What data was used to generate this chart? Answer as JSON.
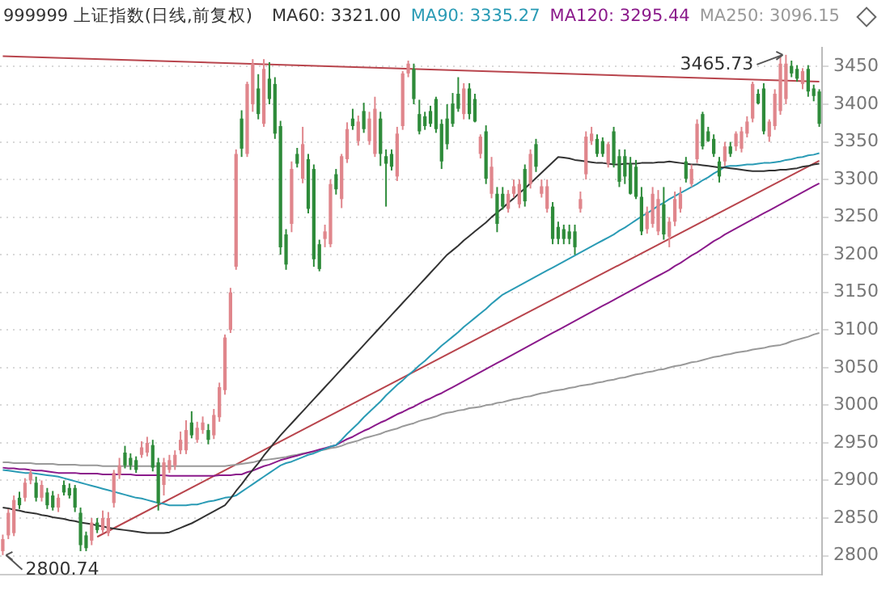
{
  "chart_data": {
    "type": "candlestick",
    "title": "999999 上证指数(日线,前复权)",
    "legend": "top",
    "grid": "y",
    "tick_labels": "y",
    "ylim": [
      2775,
      3475
    ],
    "yticks": [
      2800,
      2850,
      2900,
      2950,
      3000,
      3050,
      3100,
      3150,
      3200,
      3250,
      3300,
      3350,
      3400,
      3450
    ],
    "categories": [
      null,
      null,
      null,
      null,
      null,
      null,
      null,
      null,
      null,
      null,
      null,
      null,
      null,
      null,
      null,
      null,
      null,
      null,
      null,
      null,
      null,
      null,
      null,
      null,
      null,
      null,
      null,
      null,
      null,
      null,
      null,
      null,
      null,
      null,
      null,
      null,
      null,
      null,
      null,
      null,
      null,
      null,
      null,
      null,
      null,
      null,
      null,
      null,
      null,
      null,
      null,
      null,
      null,
      null,
      null,
      null,
      null,
      null,
      null,
      null,
      null,
      null,
      null,
      null,
      null,
      null,
      null,
      null,
      null,
      null,
      null,
      null,
      null,
      null,
      null,
      null,
      null,
      null,
      null,
      null,
      null,
      null,
      null,
      null,
      null,
      null,
      null,
      null,
      null,
      null,
      null,
      null,
      null,
      null,
      null,
      null,
      null,
      null,
      null,
      null,
      null,
      null,
      null,
      null,
      null,
      null,
      null,
      null,
      null,
      null,
      null,
      null,
      null,
      null,
      null,
      null,
      null,
      null,
      null,
      null,
      null,
      null,
      null,
      null,
      null,
      null,
      null,
      null,
      null,
      null,
      null,
      null,
      null,
      null,
      null,
      null,
      null,
      null,
      null,
      null,
      null,
      null,
      null,
      null,
      null,
      null,
      null,
      null
    ],
    "ohlc": [
      [
        2806,
        2828,
        2800.74,
        2822
      ],
      [
        2827,
        2862,
        2822,
        2857
      ],
      [
        2830,
        2880,
        2826,
        2874
      ],
      [
        2877,
        2885,
        2862,
        2867
      ],
      [
        2877,
        2903,
        2872,
        2897
      ],
      [
        2900,
        2915,
        2895,
        2910
      ],
      [
        2897,
        2905,
        2872,
        2877
      ],
      [
        2877,
        2900,
        2872,
        2894
      ],
      [
        2884,
        2890,
        2862,
        2867
      ],
      [
        2880,
        2886,
        2860,
        2864
      ],
      [
        2864,
        2882,
        2858,
        2877
      ],
      [
        2894,
        2900,
        2880,
        2884
      ],
      [
        2890,
        2896,
        2876,
        2880
      ],
      [
        2890,
        2894,
        2858,
        2864
      ],
      [
        2857,
        2864,
        2806,
        2814
      ],
      [
        2827,
        2832,
        2806,
        2810
      ],
      [
        2820,
        2850,
        2814,
        2844
      ],
      [
        2844,
        2850,
        2830,
        2834
      ],
      [
        2834,
        2860,
        2830,
        2850
      ],
      [
        2830,
        2858,
        2826,
        2850
      ],
      [
        2870,
        2914,
        2864,
        2910
      ],
      [
        2907,
        2930,
        2902,
        2920
      ],
      [
        2937,
        2946,
        2916,
        2920
      ],
      [
        2930,
        2936,
        2914,
        2920
      ],
      [
        2927,
        2932,
        2910,
        2914
      ],
      [
        2934,
        2952,
        2930,
        2944
      ],
      [
        2937,
        2958,
        2932,
        2950
      ],
      [
        2947,
        2954,
        2912,
        2917
      ],
      [
        2924,
        2930,
        2860,
        2870
      ],
      [
        2894,
        2930,
        2880,
        2924
      ],
      [
        2914,
        2934,
        2910,
        2927
      ],
      [
        2920,
        2940,
        2914,
        2934
      ],
      [
        2940,
        2965,
        2935,
        2954
      ],
      [
        2940,
        2980,
        2935,
        2967
      ],
      [
        2977,
        2992,
        2956,
        2960
      ],
      [
        2954,
        2978,
        2950,
        2970
      ],
      [
        2967,
        2985,
        2962,
        2977
      ],
      [
        2967,
        2975,
        2948,
        2954
      ],
      [
        2960,
        2995,
        2955,
        2987
      ],
      [
        2984,
        3030,
        2978,
        3024
      ],
      [
        3020,
        3094,
        3014,
        3090
      ],
      [
        3100,
        3156,
        3096,
        3150
      ],
      [
        3184,
        3340,
        3180,
        3334
      ],
      [
        3381,
        3392,
        3330,
        3341
      ],
      [
        3334,
        3430,
        3330,
        3427
      ],
      [
        3400,
        3460,
        3390,
        3454
      ],
      [
        3421,
        3440,
        3380,
        3387
      ],
      [
        3374,
        3460,
        3370,
        3447
      ],
      [
        3434,
        3456,
        3400,
        3407
      ],
      [
        3427,
        3436,
        3354,
        3361
      ],
      [
        3371,
        3378,
        3200,
        3210
      ],
      [
        3227,
        3234,
        3180,
        3187
      ],
      [
        3241,
        3324,
        3230,
        3314
      ],
      [
        3334,
        3342,
        3316,
        3321
      ],
      [
        3301,
        3370,
        3295,
        3347
      ],
      [
        3327,
        3334,
        3255,
        3261
      ],
      [
        3314,
        3320,
        3184,
        3194
      ],
      [
        3214,
        3220,
        3178,
        3181
      ],
      [
        3221,
        3240,
        3210,
        3231
      ],
      [
        3214,
        3300,
        3210,
        3294
      ],
      [
        3307,
        3314,
        3280,
        3287
      ],
      [
        3274,
        3334,
        3262,
        3331
      ],
      [
        3327,
        3376,
        3322,
        3367
      ],
      [
        3381,
        3394,
        3366,
        3371
      ],
      [
        3351,
        3385,
        3345,
        3377
      ],
      [
        3391,
        3402,
        3362,
        3367
      ],
      [
        3351,
        3390,
        3346,
        3381
      ],
      [
        3334,
        3410,
        3330,
        3394
      ],
      [
        3381,
        3390,
        3318,
        3334
      ],
      [
        3331,
        3340,
        3264,
        3321
      ],
      [
        3334,
        3340,
        3312,
        3317
      ],
      [
        3304,
        3370,
        3298,
        3361
      ],
      [
        3371,
        3444,
        3366,
        3441
      ],
      [
        3441,
        3458,
        3436,
        3454
      ],
      [
        3447,
        3454,
        3400,
        3407
      ],
      [
        3387,
        3406,
        3360,
        3364
      ],
      [
        3384,
        3390,
        3366,
        3371
      ],
      [
        3391,
        3398,
        3370,
        3374
      ],
      [
        3407,
        3410,
        3362,
        3367
      ],
      [
        3374,
        3380,
        3314,
        3324
      ],
      [
        3381,
        3400,
        3340,
        3347
      ],
      [
        3401,
        3415,
        3370,
        3374
      ],
      [
        3414,
        3436,
        3390,
        3394
      ],
      [
        3387,
        3428,
        3380,
        3421
      ],
      [
        3421,
        3428,
        3380,
        3387
      ],
      [
        3407,
        3414,
        3376,
        3377
      ],
      [
        3334,
        3360,
        3328,
        3357
      ],
      [
        3364,
        3372,
        3294,
        3301
      ],
      [
        3281,
        3330,
        3275,
        3317
      ],
      [
        3281,
        3290,
        3230,
        3241
      ],
      [
        3281,
        3290,
        3260,
        3264
      ],
      [
        3261,
        3286,
        3256,
        3281
      ],
      [
        3281,
        3300,
        3276,
        3291
      ],
      [
        3267,
        3300,
        3262,
        3294
      ],
      [
        3314,
        3320,
        3264,
        3271
      ],
      [
        3294,
        3340,
        3288,
        3334
      ],
      [
        3347,
        3354,
        3310,
        3317
      ],
      [
        3281,
        3300,
        3276,
        3291
      ],
      [
        3261,
        3300,
        3256,
        3291
      ],
      [
        3264,
        3270,
        3214,
        3221
      ],
      [
        3237,
        3244,
        3214,
        3221
      ],
      [
        3234,
        3240,
        3214,
        3221
      ],
      [
        3231,
        3240,
        3214,
        3221
      ],
      [
        3231,
        3240,
        3200,
        3210
      ],
      [
        3261,
        3284,
        3256,
        3274
      ],
      [
        3307,
        3364,
        3300,
        3357
      ],
      [
        3351,
        3370,
        3346,
        3361
      ],
      [
        3354,
        3360,
        3330,
        3334
      ],
      [
        3351,
        3356,
        3330,
        3334
      ],
      [
        3321,
        3350,
        3316,
        3347
      ],
      [
        3364,
        3370,
        3316,
        3321
      ],
      [
        3331,
        3340,
        3290,
        3297
      ],
      [
        3331,
        3340,
        3294,
        3304
      ],
      [
        3321,
        3330,
        3280,
        3281
      ],
      [
        3317,
        3326,
        3274,
        3277
      ],
      [
        3277,
        3290,
        3226,
        3231
      ],
      [
        3234,
        3264,
        3228,
        3257
      ],
      [
        3241,
        3290,
        3236,
        3281
      ],
      [
        3231,
        3286,
        3226,
        3274
      ],
      [
        3267,
        3290,
        3220,
        3227
      ],
      [
        3224,
        3250,
        3210,
        3244
      ],
      [
        3244,
        3284,
        3238,
        3274
      ],
      [
        3261,
        3290,
        3256,
        3281
      ],
      [
        3324,
        3330,
        3296,
        3301
      ],
      [
        3294,
        3320,
        3290,
        3314
      ],
      [
        3327,
        3380,
        3322,
        3374
      ],
      [
        3387,
        3390,
        3340,
        3344
      ],
      [
        3364,
        3370,
        3350,
        3351
      ],
      [
        3354,
        3360,
        3330,
        3334
      ],
      [
        3324,
        3330,
        3296,
        3304
      ],
      [
        3324,
        3350,
        3318,
        3344
      ],
      [
        3344,
        3350,
        3330,
        3334
      ],
      [
        3344,
        3364,
        3338,
        3361
      ],
      [
        3341,
        3370,
        3336,
        3364
      ],
      [
        3361,
        3384,
        3356,
        3377
      ],
      [
        3381,
        3430,
        3376,
        3427
      ],
      [
        3414,
        3420,
        3400,
        3401
      ],
      [
        3421,
        3428,
        3360,
        3364
      ],
      [
        3357,
        3380,
        3350,
        3377
      ],
      [
        3371,
        3420,
        3366,
        3414
      ],
      [
        3391,
        3464,
        3386,
        3454
      ],
      [
        3407,
        3465.73,
        3400,
        3454
      ],
      [
        3451,
        3458,
        3436,
        3441
      ],
      [
        3447,
        3452,
        3430,
        3434
      ],
      [
        3427,
        3448,
        3420,
        3444
      ],
      [
        3447,
        3452,
        3410,
        3417
      ],
      [
        3421,
        3426,
        3404,
        3411
      ],
      [
        3417,
        3420,
        3370,
        3374
      ]
    ],
    "colors": [
      "#e0868c",
      "#e0868c",
      "#e0868c",
      "#2e8b3a",
      "#e0868c",
      "#e0868c",
      "#2e8b3a",
      "#e0868c",
      "#2e8b3a",
      "#2e8b3a",
      "#e0868c",
      "#2e8b3a",
      "#2e8b3a",
      "#2e8b3a",
      "#2e8b3a",
      "#2e8b3a",
      "#e0868c",
      "#2e8b3a",
      "#e0868c",
      "#e0868c",
      "#e0868c",
      "#e0868c",
      "#2e8b3a",
      "#2e8b3a",
      "#2e8b3a",
      "#e0868c",
      "#e0868c",
      "#2e8b3a",
      "#2e8b3a",
      "#e0868c",
      "#e0868c",
      "#e0868c",
      "#e0868c",
      "#e0868c",
      "#2e8b3a",
      "#e0868c",
      "#e0868c",
      "#2e8b3a",
      "#e0868c",
      "#e0868c",
      "#e0868c",
      "#e0868c",
      "#e0868c",
      "#2e8b3a",
      "#e0868c",
      "#e0868c",
      "#2e8b3a",
      "#e0868c",
      "#2e8b3a",
      "#2e8b3a",
      "#2e8b3a",
      "#2e8b3a",
      "#e0868c",
      "#2e8b3a",
      "#e0868c",
      "#2e8b3a",
      "#2e8b3a",
      "#2e8b3a",
      "#e0868c",
      "#e0868c",
      "#2e8b3a",
      "#e0868c",
      "#e0868c",
      "#2e8b3a",
      "#e0868c",
      "#2e8b3a",
      "#e0868c",
      "#e0868c",
      "#2e8b3a",
      "#2e8b3a",
      "#2e8b3a",
      "#e0868c",
      "#e0868c",
      "#e0868c",
      "#2e8b3a",
      "#2e8b3a",
      "#2e8b3a",
      "#2e8b3a",
      "#2e8b3a",
      "#2e8b3a",
      "#2e8b3a",
      "#2e8b3a",
      "#2e8b3a",
      "#e0868c",
      "#2e8b3a",
      "#2e8b3a",
      "#e0868c",
      "#2e8b3a",
      "#e0868c",
      "#2e8b3a",
      "#2e8b3a",
      "#e0868c",
      "#e0868c",
      "#e0868c",
      "#2e8b3a",
      "#e0868c",
      "#2e8b3a",
      "#e0868c",
      "#e0868c",
      "#2e8b3a",
      "#2e8b3a",
      "#2e8b3a",
      "#2e8b3a",
      "#2e8b3a",
      "#e0868c",
      "#e0868c",
      "#e0868c",
      "#2e8b3a",
      "#2e8b3a",
      "#e0868c",
      "#2e8b3a",
      "#2e8b3a",
      "#2e8b3a",
      "#2e8b3a",
      "#2e8b3a",
      "#2e8b3a",
      "#e0868c",
      "#e0868c",
      "#e0868c",
      "#2e8b3a",
      "#e0868c",
      "#e0868c",
      "#e0868c",
      "#2e8b3a",
      "#e0868c",
      "#e0868c",
      "#2e8b3a",
      "#2e8b3a",
      "#2e8b3a",
      "#2e8b3a",
      "#e0868c",
      "#2e8b3a",
      "#e0868c",
      "#e0868c",
      "#e0868c",
      "#e0868c",
      "#2e8b3a",
      "#2e8b3a",
      "#e0868c",
      "#e0868c",
      "#e0868c",
      "#e0868c",
      "#2e8b3a",
      "#2e8b3a",
      "#e0868c",
      "#2e8b3a",
      "#2e8b3a",
      "#2e8b3a"
    ],
    "series": [
      {
        "name": "MA60: 3321.00",
        "type": "line",
        "color": "#333333",
        "values": [
          2864,
          2863,
          2861,
          2860,
          2858,
          2857,
          2856,
          2854,
          2853,
          2851,
          2850,
          2849,
          2847,
          2846,
          2844,
          2843,
          2842,
          2840,
          2839,
          2837,
          2836,
          2835,
          2834,
          2833,
          2832,
          2831,
          2830,
          2830,
          2830,
          2830,
          2831,
          2834,
          2837,
          2840,
          2843,
          2847,
          2851,
          2855,
          2859,
          2863,
          2867,
          2876,
          2886,
          2895,
          2905,
          2914,
          2923,
          2933,
          2942,
          2951,
          2960,
          2968,
          2976,
          2984,
          2992,
          3000,
          3008,
          3016,
          3024,
          3032,
          3040,
          3048,
          3056,
          3064,
          3072,
          3080,
          3088,
          3096,
          3104,
          3112,
          3120,
          3128,
          3136,
          3144,
          3152,
          3160,
          3168,
          3176,
          3184,
          3192,
          3200,
          3206,
          3212,
          3219,
          3225,
          3231,
          3237,
          3243,
          3250,
          3256,
          3262,
          3269,
          3275,
          3282,
          3288,
          3295,
          3302,
          3309,
          3316,
          3323,
          3330,
          3329,
          3328,
          3326,
          3325,
          3324,
          3323,
          3322,
          3322,
          3321,
          3320,
          3320,
          3321,
          3321,
          3321,
          3322,
          3322,
          3322,
          3323,
          3323,
          3324,
          3323,
          3322,
          3321,
          3320,
          3320,
          3319,
          3318,
          3317,
          3316,
          3316,
          3315,
          3314,
          3313,
          3312,
          3311,
          3311,
          3311,
          3312,
          3312,
          3313,
          3313,
          3314,
          3315,
          3317,
          3318,
          3320,
          3321
        ]
      },
      {
        "name": "MA90: 3335.27",
        "type": "line",
        "color": "#2a9bb5",
        "values": [
          2914,
          2913,
          2912,
          2911,
          2910,
          2910,
          2909,
          2908,
          2907,
          2906,
          2905,
          2903,
          2901,
          2899,
          2897,
          2895,
          2893,
          2891,
          2889,
          2887,
          2885,
          2883,
          2881,
          2879,
          2877,
          2876,
          2874,
          2872,
          2870,
          2869,
          2867,
          2867,
          2867,
          2867,
          2868,
          2868,
          2870,
          2872,
          2873,
          2875,
          2877,
          2878,
          2880,
          2885,
          2890,
          2895,
          2900,
          2905,
          2910,
          2915,
          2920,
          2923,
          2925,
          2928,
          2931,
          2934,
          2936,
          2939,
          2942,
          2945,
          2947,
          2954,
          2962,
          2969,
          2976,
          2984,
          2991,
          2998,
          3005,
          3013,
          3020,
          3027,
          3033,
          3040,
          3046,
          3053,
          3059,
          3066,
          3072,
          3079,
          3085,
          3091,
          3097,
          3104,
          3110,
          3116,
          3122,
          3128,
          3135,
          3141,
          3147,
          3151,
          3155,
          3159,
          3163,
          3167,
          3171,
          3175,
          3179,
          3183,
          3187,
          3191,
          3195,
          3199,
          3203,
          3207,
          3211,
          3215,
          3219,
          3223,
          3227,
          3232,
          3236,
          3241,
          3246,
          3251,
          3255,
          3260,
          3265,
          3269,
          3274,
          3278,
          3282,
          3286,
          3290,
          3294,
          3299,
          3303,
          3308,
          3312,
          3317,
          3318,
          3318,
          3319,
          3320,
          3320,
          3321,
          3322,
          3322,
          3323,
          3324,
          3326,
          3327,
          3329,
          3330,
          3332,
          3333,
          3335
        ]
      },
      {
        "name": "MA120: 3295.44",
        "type": "line",
        "color": "#8b1a8b",
        "values": [
          2917,
          2916,
          2916,
          2915,
          2915,
          2914,
          2913,
          2913,
          2912,
          2911,
          2910,
          2910,
          2910,
          2910,
          2909,
          2909,
          2909,
          2909,
          2908,
          2908,
          2908,
          2908,
          2908,
          2908,
          2907,
          2907,
          2907,
          2907,
          2907,
          2907,
          2906,
          2906,
          2906,
          2906,
          2906,
          2906,
          2906,
          2906,
          2906,
          2907,
          2907,
          2907,
          2908,
          2908,
          2911,
          2913,
          2916,
          2919,
          2921,
          2924,
          2927,
          2929,
          2931,
          2933,
          2935,
          2937,
          2939,
          2941,
          2943,
          2945,
          2947,
          2951,
          2955,
          2958,
          2962,
          2966,
          2969,
          2973,
          2977,
          2980,
          2984,
          2988,
          2991,
          2995,
          2998,
          3002,
          3006,
          3009,
          3013,
          3016,
          3020,
          3024,
          3028,
          3032,
          3036,
          3040,
          3044,
          3048,
          3052,
          3056,
          3060,
          3064,
          3068,
          3072,
          3076,
          3080,
          3084,
          3088,
          3092,
          3096,
          3100,
          3104,
          3108,
          3112,
          3116,
          3120,
          3124,
          3128,
          3132,
          3136,
          3140,
          3144,
          3148,
          3152,
          3156,
          3160,
          3164,
          3168,
          3172,
          3176,
          3180,
          3185,
          3189,
          3194,
          3199,
          3203,
          3208,
          3213,
          3218,
          3222,
          3227,
          3231,
          3235,
          3239,
          3243,
          3247,
          3251,
          3255,
          3259,
          3263,
          3267,
          3271,
          3275,
          3279,
          3283,
          3287,
          3291,
          3295
        ]
      },
      {
        "name": "MA250: 3096.15",
        "type": "line",
        "color": "#999999",
        "values": [
          2924,
          2924,
          2923,
          2923,
          2923,
          2923,
          2922,
          2922,
          2922,
          2922,
          2921,
          2921,
          2921,
          2921,
          2920,
          2920,
          2920,
          2920,
          2919,
          2919,
          2919,
          2919,
          2919,
          2919,
          2919,
          2919,
          2919,
          2919,
          2919,
          2919,
          2919,
          2919,
          2919,
          2919,
          2919,
          2919,
          2919,
          2919,
          2919,
          2919,
          2919,
          2920,
          2921,
          2922,
          2923,
          2924,
          2926,
          2927,
          2928,
          2929,
          2930,
          2931,
          2933,
          2934,
          2936,
          2937,
          2938,
          2940,
          2941,
          2943,
          2944,
          2946,
          2949,
          2951,
          2953,
          2956,
          2958,
          2960,
          2962,
          2965,
          2967,
          2969,
          2972,
          2974,
          2976,
          2979,
          2981,
          2983,
          2985,
          2988,
          2990,
          2991,
          2993,
          2994,
          2996,
          2997,
          2998,
          3000,
          3001,
          3003,
          3004,
          3006,
          3008,
          3009,
          3011,
          3012,
          3014,
          3016,
          3017,
          3019,
          3020,
          3021,
          3023,
          3024,
          3026,
          3027,
          3028,
          3030,
          3031,
          3033,
          3034,
          3036,
          3037,
          3039,
          3041,
          3042,
          3044,
          3045,
          3047,
          3048,
          3050,
          3052,
          3053,
          3055,
          3057,
          3058,
          3060,
          3062,
          3064,
          3065,
          3067,
          3068,
          3070,
          3071,
          3072,
          3074,
          3075,
          3076,
          3078,
          3079,
          3080,
          3082,
          3085,
          3087,
          3089,
          3091,
          3094,
          3096
        ]
      },
      {
        "type": "line",
        "color": "#b8444c",
        "values": [
          null,
          null,
          null,
          null,
          null,
          null,
          null,
          null,
          null,
          null,
          null,
          null,
          null,
          null,
          null,
          null,
          null,
          2825,
          null,
          null,
          null,
          null,
          null,
          null,
          null,
          null,
          null,
          null,
          null,
          null,
          null,
          null,
          null,
          null,
          null,
          null,
          null,
          null,
          null,
          null,
          null,
          null,
          null,
          null,
          null,
          null,
          null,
          null,
          null,
          null,
          null,
          null,
          null,
          null,
          null,
          null,
          null,
          null,
          null,
          null,
          null,
          null,
          null,
          null,
          null,
          null,
          null,
          null,
          null,
          null,
          null,
          null,
          null,
          null,
          null,
          null,
          null,
          null,
          null,
          null,
          null,
          null,
          null,
          null,
          null,
          null,
          null,
          null,
          null,
          null,
          null,
          null,
          null,
          null,
          null,
          null,
          null,
          null,
          null,
          null,
          null,
          null,
          null,
          null,
          null,
          null,
          null,
          null,
          null,
          null,
          null,
          null,
          null,
          null,
          null,
          null,
          null,
          null,
          null,
          null,
          null,
          null,
          null,
          null,
          null,
          null,
          null,
          null,
          null,
          null,
          null,
          null,
          null,
          null,
          null,
          null,
          null,
          null,
          null,
          null,
          null,
          null,
          null,
          null,
          null,
          null,
          null,
          3325
        ]
      },
      {
        "type": "line",
        "color": "#b8444c",
        "values": [
          3464,
          null,
          null,
          null,
          null,
          null,
          null,
          null,
          null,
          null,
          null,
          null,
          null,
          null,
          null,
          null,
          null,
          null,
          null,
          null,
          null,
          null,
          null,
          null,
          null,
          null,
          null,
          null,
          null,
          null,
          null,
          null,
          null,
          null,
          null,
          null,
          null,
          null,
          null,
          null,
          null,
          null,
          null,
          null,
          null,
          null,
          null,
          null,
          null,
          null,
          null,
          null,
          null,
          null,
          null,
          null,
          null,
          null,
          null,
          null,
          null,
          null,
          null,
          null,
          null,
          null,
          null,
          null,
          null,
          null,
          null,
          null,
          null,
          null,
          null,
          null,
          null,
          null,
          null,
          null,
          null,
          null,
          null,
          null,
          null,
          null,
          null,
          null,
          null,
          null,
          null,
          null,
          null,
          null,
          null,
          null,
          null,
          null,
          null,
          null,
          null,
          null,
          null,
          null,
          null,
          null,
          null,
          null,
          null,
          null,
          null,
          null,
          null,
          null,
          null,
          null,
          null,
          null,
          null,
          null,
          null,
          null,
          null,
          null,
          null,
          null,
          null,
          null,
          null,
          null,
          null,
          null,
          null,
          null,
          null,
          null,
          null,
          null,
          null,
          null,
          null,
          null,
          null,
          null,
          null,
          null,
          null,
          3430
        ]
      }
    ],
    "annotations": [
      "3465.73",
      "2800.74"
    ]
  }
}
